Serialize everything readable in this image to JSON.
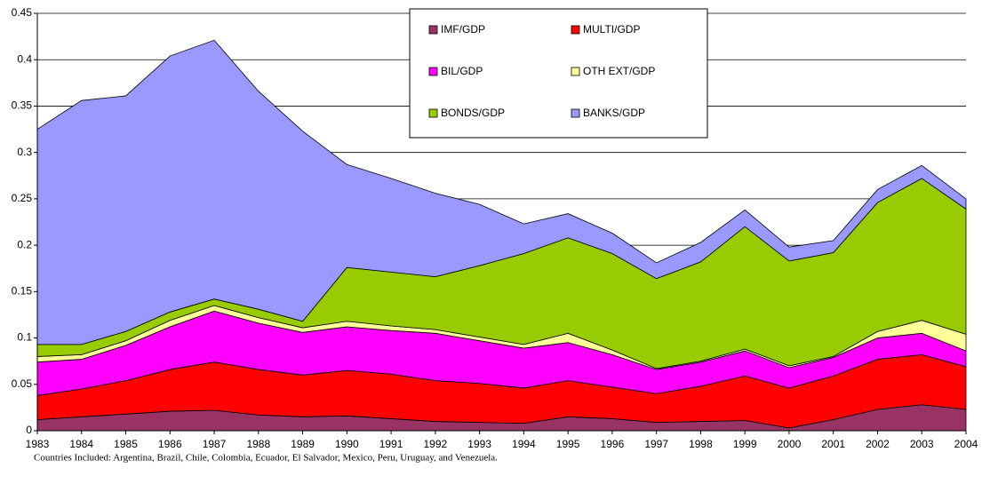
{
  "chart_data": {
    "type": "stacked-area",
    "x": [
      1983,
      1984,
      1985,
      1986,
      1987,
      1988,
      1989,
      1990,
      1991,
      1992,
      1993,
      1994,
      1995,
      1996,
      1997,
      1998,
      1999,
      2000,
      2001,
      2002,
      2003,
      2004
    ],
    "xlim": [
      1983,
      2004
    ],
    "ylim": [
      0,
      0.45
    ],
    "yticks": [
      0,
      0.05,
      0.1,
      0.15,
      0.2,
      0.25,
      0.3,
      0.35,
      0.4,
      0.45
    ],
    "grid": true,
    "legend": "top",
    "series": [
      {
        "name": "IMF/GDP",
        "color": "#993366",
        "values": [
          0.012,
          0.015,
          0.018,
          0.021,
          0.022,
          0.017,
          0.015,
          0.016,
          0.013,
          0.01,
          0.009,
          0.008,
          0.015,
          0.013,
          0.009,
          0.01,
          0.011,
          0.003,
          0.012,
          0.023,
          0.028,
          0.023
        ]
      },
      {
        "name": "MULTI/GDP",
        "color": "#ff0000",
        "values": [
          0.026,
          0.03,
          0.036,
          0.045,
          0.052,
          0.049,
          0.045,
          0.049,
          0.048,
          0.044,
          0.042,
          0.038,
          0.039,
          0.034,
          0.031,
          0.038,
          0.048,
          0.043,
          0.047,
          0.054,
          0.054,
          0.046
        ]
      },
      {
        "name": "BIL/GDP",
        "color": "#ff00ff",
        "values": [
          0.036,
          0.032,
          0.038,
          0.046,
          0.055,
          0.05,
          0.046,
          0.047,
          0.047,
          0.051,
          0.046,
          0.043,
          0.041,
          0.035,
          0.026,
          0.026,
          0.027,
          0.022,
          0.02,
          0.023,
          0.023,
          0.017
        ]
      },
      {
        "name": "OTH EXT/GDP",
        "color": "#ffff99",
        "values": [
          0.006,
          0.005,
          0.005,
          0.007,
          0.006,
          0.006,
          0.005,
          0.006,
          0.005,
          0.004,
          0.004,
          0.004,
          0.01,
          0.005,
          0.001,
          0.001,
          0.002,
          0.002,
          0.001,
          0.007,
          0.014,
          0.018
        ]
      },
      {
        "name": "BONDS/GDP",
        "color": "#99cc00",
        "values": [
          0.013,
          0.011,
          0.01,
          0.009,
          0.007,
          0.009,
          0.007,
          0.058,
          0.058,
          0.057,
          0.077,
          0.098,
          0.103,
          0.104,
          0.097,
          0.107,
          0.132,
          0.113,
          0.112,
          0.139,
          0.153,
          0.135
        ]
      },
      {
        "name": "BANKS/GDP",
        "color": "#9999ff",
        "values": [
          0.232,
          0.263,
          0.254,
          0.276,
          0.279,
          0.235,
          0.205,
          0.111,
          0.101,
          0.09,
          0.066,
          0.032,
          0.026,
          0.022,
          0.017,
          0.021,
          0.018,
          0.015,
          0.013,
          0.014,
          0.014,
          0.011
        ]
      }
    ],
    "footnote": "Countries Included: Argentina, Brazil, Chile, Colombia, Ecuador, El Salvador, Mexico, Peru, Uruguay, and Venezuela."
  }
}
